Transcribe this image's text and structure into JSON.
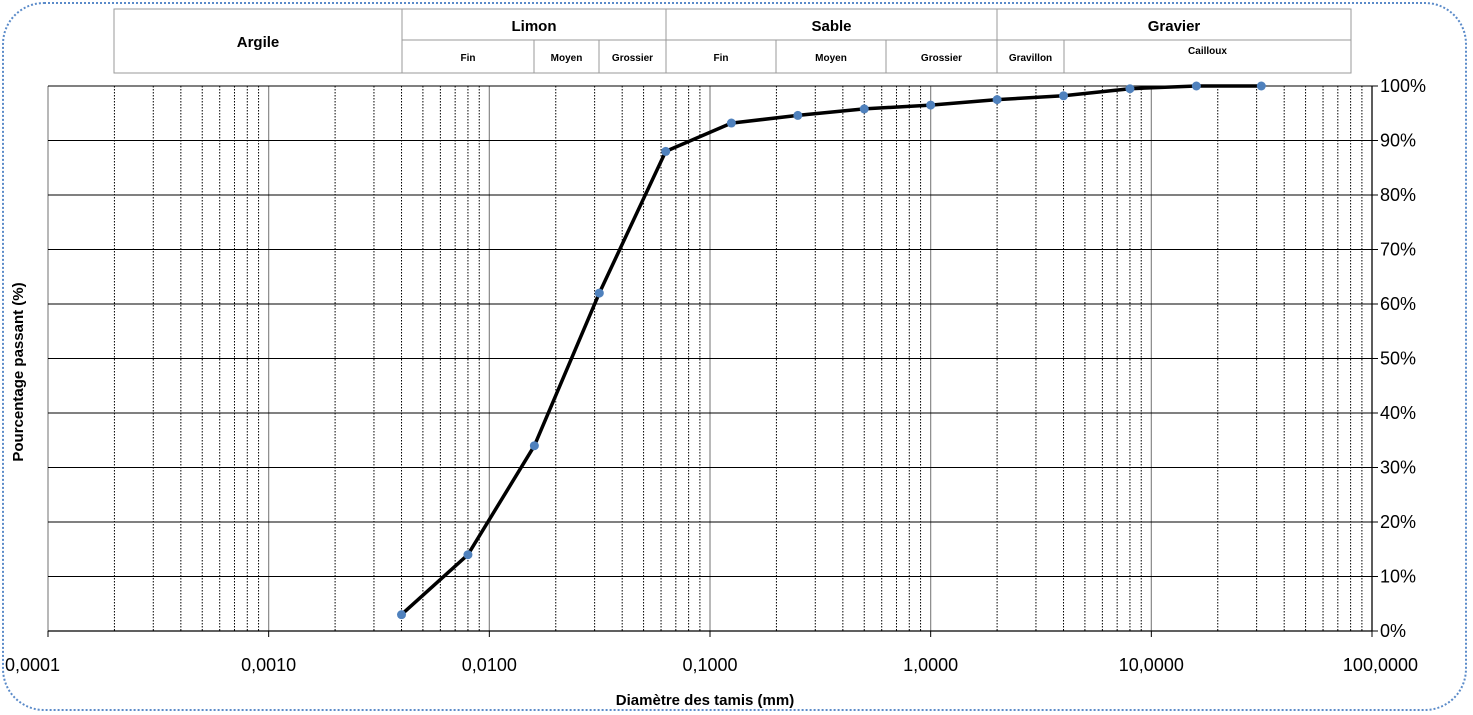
{
  "chart_data": {
    "type": "line",
    "title": "",
    "xlabel": "Diamètre des tamis (mm)",
    "ylabel": "Pourcentage passant (%)",
    "x_scale": "log",
    "xlim": [
      0.0001,
      100
    ],
    "ylim": [
      0,
      100
    ],
    "x_ticks": [
      {
        "value": 0.0001,
        "label": "0,0001"
      },
      {
        "value": 0.001,
        "label": "0,0010"
      },
      {
        "value": 0.01,
        "label": "0,0100"
      },
      {
        "value": 0.1,
        "label": "0,1000"
      },
      {
        "value": 1,
        "label": "1,0000"
      },
      {
        "value": 10,
        "label": "10,0000"
      },
      {
        "value": 100,
        "label": "100,0000"
      }
    ],
    "y_ticks": [
      {
        "value": 0,
        "label": "0%"
      },
      {
        "value": 10,
        "label": "10%"
      },
      {
        "value": 20,
        "label": "20%"
      },
      {
        "value": 30,
        "label": "30%"
      },
      {
        "value": 40,
        "label": "40%"
      },
      {
        "value": 50,
        "label": "50%"
      },
      {
        "value": 60,
        "label": "60%"
      },
      {
        "value": 70,
        "label": "70%"
      },
      {
        "value": 80,
        "label": "80%"
      },
      {
        "value": 90,
        "label": "90%"
      },
      {
        "value": 100,
        "label": "100%"
      }
    ],
    "grid": {
      "major_x": true,
      "minor_x": true,
      "major_y": true
    },
    "legend": "none",
    "colors": {
      "line": "#000000",
      "marker": "#4f81bd",
      "major_grid": "#888888",
      "minor_grid": "#000000",
      "frame": "#5b8bc9"
    },
    "series": [
      {
        "x": [
          0.004,
          0.008,
          0.016,
          0.0315,
          0.063,
          0.125,
          0.25,
          0.5,
          1,
          2,
          4,
          8,
          16,
          31.5
        ],
        "y": [
          3,
          14,
          34,
          62,
          88,
          93.2,
          94.6,
          95.8,
          96.5,
          97.5,
          98.2,
          99.5,
          100,
          100
        ]
      }
    ],
    "classification": {
      "groups": [
        {
          "label": "Argile",
          "from": 0.0002,
          "to": 0.004
        },
        {
          "label": "Limon",
          "from": 0.004,
          "to": 0.063
        },
        {
          "label": "Sable",
          "from": 0.063,
          "to": 2
        },
        {
          "label": "Gravier",
          "from": 2,
          "to": 80
        }
      ],
      "subgroups": [
        {
          "label": "Fin",
          "from": 0.004,
          "to": 0.016
        },
        {
          "label": "Moyen",
          "from": 0.016,
          "to": 0.0315
        },
        {
          "label": "Grossier",
          "from": 0.0315,
          "to": 0.063
        },
        {
          "label": "Fin",
          "from": 0.063,
          "to": 0.2
        },
        {
          "label": "Moyen",
          "from": 0.2,
          "to": 0.63
        },
        {
          "label": "Grossier",
          "from": 0.63,
          "to": 2
        },
        {
          "label": "Gravillon",
          "from": 2,
          "to": 4
        },
        {
          "label": "Cailloux",
          "from": 4,
          "to": 80
        }
      ]
    }
  }
}
